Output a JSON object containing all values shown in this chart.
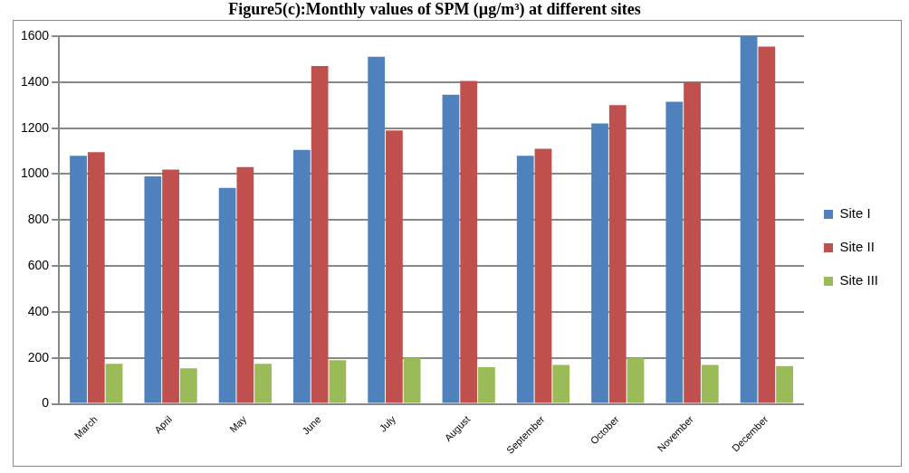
{
  "chart_data": {
    "type": "bar",
    "title": "Figure5(c):Monthly values of SPM (µg/m³) at different sites",
    "categories": [
      "March",
      "April",
      "May",
      "June",
      "July",
      "August",
      "September",
      "October",
      "November",
      "December"
    ],
    "series": [
      {
        "name": "Site I",
        "color": "#4f81bd",
        "values": [
          1080,
          990,
          940,
          1105,
          1510,
          1345,
          1080,
          1220,
          1315,
          1600
        ]
      },
      {
        "name": "Site II",
        "color": "#c0504d",
        "values": [
          1095,
          1020,
          1030,
          1470,
          1190,
          1405,
          1110,
          1300,
          1400,
          1555
        ]
      },
      {
        "name": "Site III",
        "color": "#9bbb59",
        "values": [
          175,
          155,
          175,
          190,
          200,
          160,
          170,
          200,
          170,
          165
        ]
      }
    ],
    "ylim": [
      0,
      1600
    ],
    "yticks": [
      0,
      200,
      400,
      600,
      800,
      1000,
      1200,
      1400,
      1600
    ],
    "grid": "y",
    "legend": "right"
  }
}
